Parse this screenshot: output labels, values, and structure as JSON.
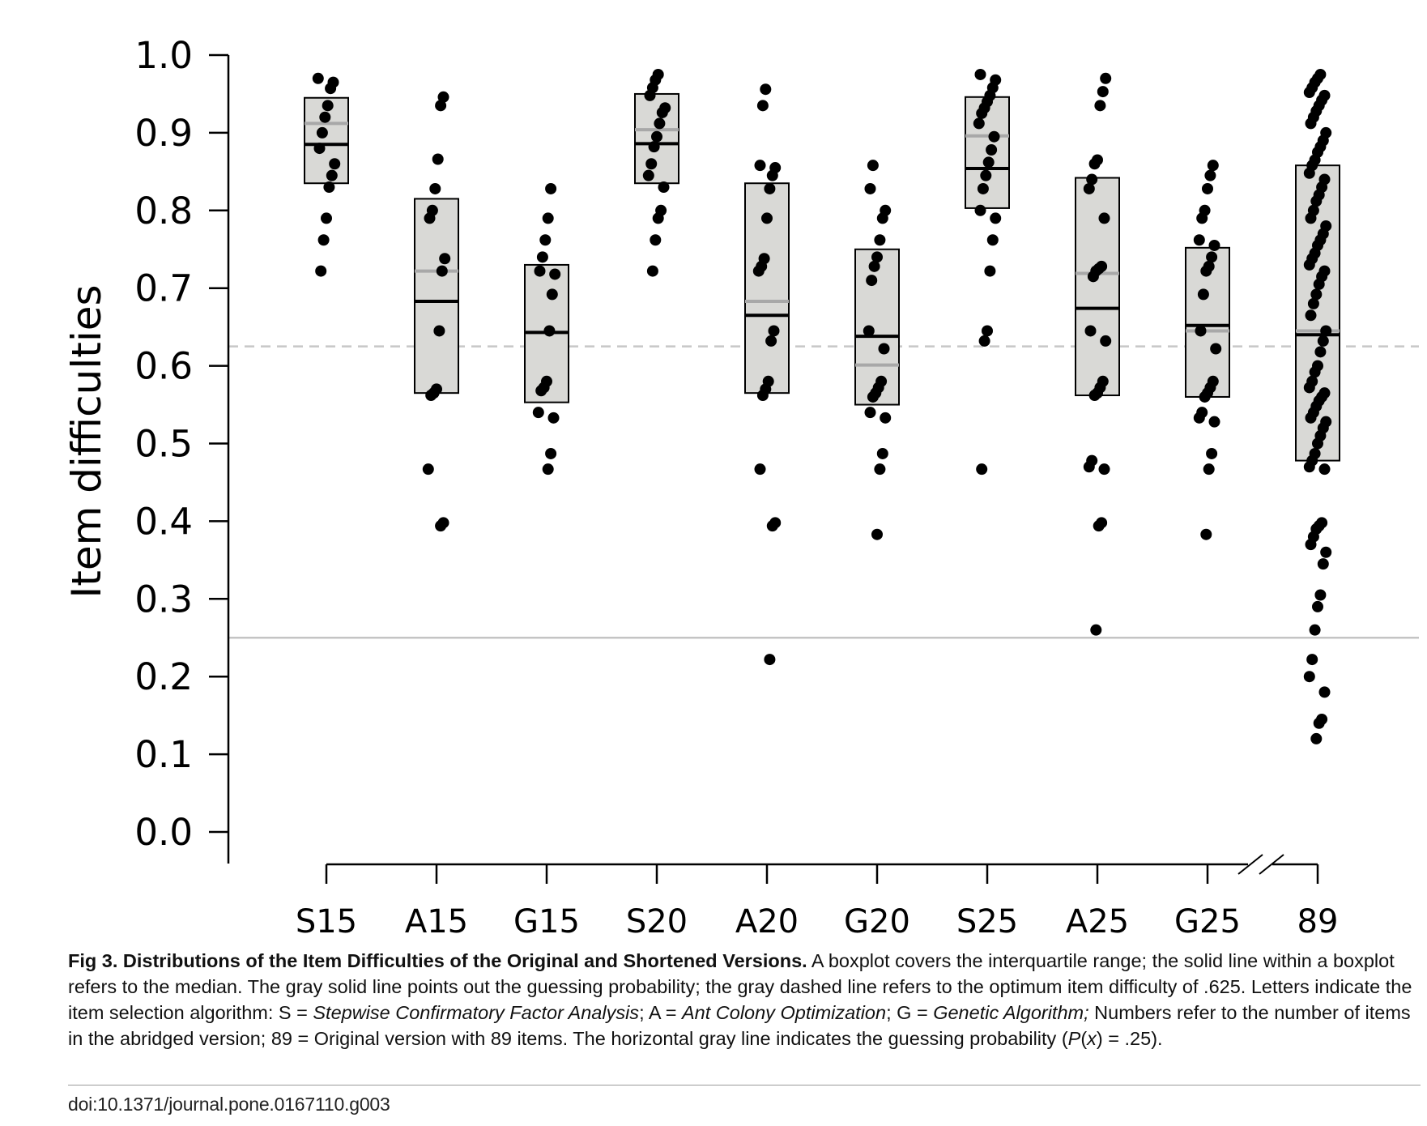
{
  "chart_data": {
    "type": "boxplot",
    "ylabel": "Item difficulties",
    "xlabel": "",
    "ylim": [
      0.0,
      1.0
    ],
    "yticks": [
      "0.0",
      "0.1",
      "0.2",
      "0.3",
      "0.4",
      "0.5",
      "0.6",
      "0.7",
      "0.8",
      "0.9",
      "1.0"
    ],
    "categories": [
      "S15",
      "A15",
      "G15",
      "S20",
      "A20",
      "G20",
      "S25",
      "A25",
      "G25",
      "89"
    ],
    "axis_break": "between G25 and 89",
    "reference_lines": [
      {
        "name": "guessing probability",
        "value": 0.25,
        "style": "solid",
        "color": "#c4c4c4"
      },
      {
        "name": "optimum item difficulty",
        "value": 0.625,
        "style": "dashed",
        "color": "#c8c8c8"
      }
    ],
    "boxes": [
      {
        "category": "S15",
        "q1": 0.835,
        "q3": 0.945,
        "median": 0.885,
        "mean": 0.912
      },
      {
        "category": "A15",
        "q1": 0.565,
        "q3": 0.815,
        "median": 0.683,
        "mean": 0.722
      },
      {
        "category": "G15",
        "q1": 0.553,
        "q3": 0.73,
        "median": 0.643,
        "mean": 0.643
      },
      {
        "category": "S20",
        "q1": 0.835,
        "q3": 0.95,
        "median": 0.886,
        "mean": 0.904
      },
      {
        "category": "A20",
        "q1": 0.565,
        "q3": 0.835,
        "median": 0.665,
        "mean": 0.683
      },
      {
        "category": "G20",
        "q1": 0.55,
        "q3": 0.75,
        "median": 0.638,
        "mean": 0.601
      },
      {
        "category": "S25",
        "q1": 0.803,
        "q3": 0.946,
        "median": 0.854,
        "mean": 0.896
      },
      {
        "category": "A25",
        "q1": 0.562,
        "q3": 0.842,
        "median": 0.674,
        "mean": 0.719
      },
      {
        "category": "G25",
        "q1": 0.56,
        "q3": 0.752,
        "median": 0.652,
        "mean": 0.645
      },
      {
        "category": "89",
        "q1": 0.478,
        "q3": 0.858,
        "median": 0.64,
        "mean": 0.645
      }
    ],
    "points": [
      [
        0.97,
        0.965,
        0.957,
        0.935,
        0.92,
        0.9,
        0.88,
        0.86,
        0.845,
        0.83,
        0.79,
        0.762,
        0.722
      ],
      [
        0.946,
        0.935,
        0.866,
        0.828,
        0.8,
        0.79,
        0.738,
        0.722,
        0.645,
        0.57,
        0.565,
        0.562,
        0.467,
        0.398,
        0.394
      ],
      [
        0.828,
        0.79,
        0.762,
        0.74,
        0.722,
        0.718,
        0.692,
        0.645,
        0.58,
        0.572,
        0.568,
        0.54,
        0.533,
        0.487,
        0.467
      ],
      [
        0.975,
        0.968,
        0.958,
        0.948,
        0.932,
        0.926,
        0.912,
        0.895,
        0.882,
        0.86,
        0.845,
        0.83,
        0.8,
        0.79,
        0.762,
        0.722
      ],
      [
        0.956,
        0.935,
        0.858,
        0.855,
        0.845,
        0.828,
        0.79,
        0.738,
        0.728,
        0.722,
        0.645,
        0.632,
        0.58,
        0.57,
        0.562,
        0.467,
        0.398,
        0.394,
        0.222
      ],
      [
        0.858,
        0.828,
        0.8,
        0.79,
        0.762,
        0.74,
        0.728,
        0.71,
        0.645,
        0.622,
        0.58,
        0.572,
        0.565,
        0.56,
        0.54,
        0.533,
        0.487,
        0.467,
        0.383
      ],
      [
        0.975,
        0.968,
        0.958,
        0.948,
        0.94,
        0.932,
        0.925,
        0.912,
        0.895,
        0.878,
        0.862,
        0.845,
        0.828,
        0.8,
        0.79,
        0.762,
        0.722,
        0.645,
        0.632,
        0.467
      ],
      [
        0.97,
        0.953,
        0.935,
        0.865,
        0.86,
        0.84,
        0.828,
        0.79,
        0.728,
        0.725,
        0.722,
        0.715,
        0.645,
        0.632,
        0.58,
        0.572,
        0.565,
        0.562,
        0.478,
        0.47,
        0.467,
        0.398,
        0.394,
        0.26
      ],
      [
        0.858,
        0.845,
        0.828,
        0.8,
        0.79,
        0.762,
        0.755,
        0.74,
        0.728,
        0.722,
        0.692,
        0.645,
        0.622,
        0.58,
        0.572,
        0.565,
        0.56,
        0.54,
        0.533,
        0.528,
        0.487,
        0.467,
        0.383
      ],
      [
        0.975,
        0.97,
        0.965,
        0.958,
        0.952,
        0.948,
        0.942,
        0.935,
        0.928,
        0.92,
        0.912,
        0.9,
        0.89,
        0.882,
        0.875,
        0.865,
        0.858,
        0.848,
        0.84,
        0.83,
        0.82,
        0.812,
        0.8,
        0.79,
        0.78,
        0.77,
        0.762,
        0.755,
        0.745,
        0.738,
        0.73,
        0.722,
        0.715,
        0.705,
        0.692,
        0.68,
        0.665,
        0.645,
        0.632,
        0.618,
        0.6,
        0.592,
        0.58,
        0.572,
        0.565,
        0.56,
        0.555,
        0.548,
        0.54,
        0.533,
        0.528,
        0.52,
        0.51,
        0.5,
        0.487,
        0.478,
        0.47,
        0.467,
        0.398,
        0.394,
        0.39,
        0.38,
        0.37,
        0.36,
        0.345,
        0.305,
        0.29,
        0.26,
        0.222,
        0.2,
        0.18,
        0.145,
        0.14,
        0.12
      ]
    ]
  },
  "caption": {
    "label": "Fig 3.",
    "title": "Distributions of the Item Difficulties of the Original and Shortened Versions.",
    "text_1": " A boxplot covers the interquartile range; the solid line within a boxplot refers to the median. The gray solid line points out the guessing probability; the gray dashed line refers to the optimum item difficulty of .625. Letters indicate the item selection algorithm: S = ",
    "algo_s": "Stepwise Confirmatory Factor Analysis",
    "text_2": "; A = ",
    "algo_a": "Ant Colony Optimization",
    "text_3": "; G = ",
    "algo_g": "Genetic Algorithm;",
    "text_4": " Numbers refer to the number of items in the abridged version; 89 = Original version with 89 items. The horizontal gray line indicates the guessing probability (",
    "px_p": "P",
    "px_open": "(",
    "px_x": "x",
    "text_5": ") = .25)."
  },
  "doi": "doi:10.1371/journal.pone.0167110.g003"
}
